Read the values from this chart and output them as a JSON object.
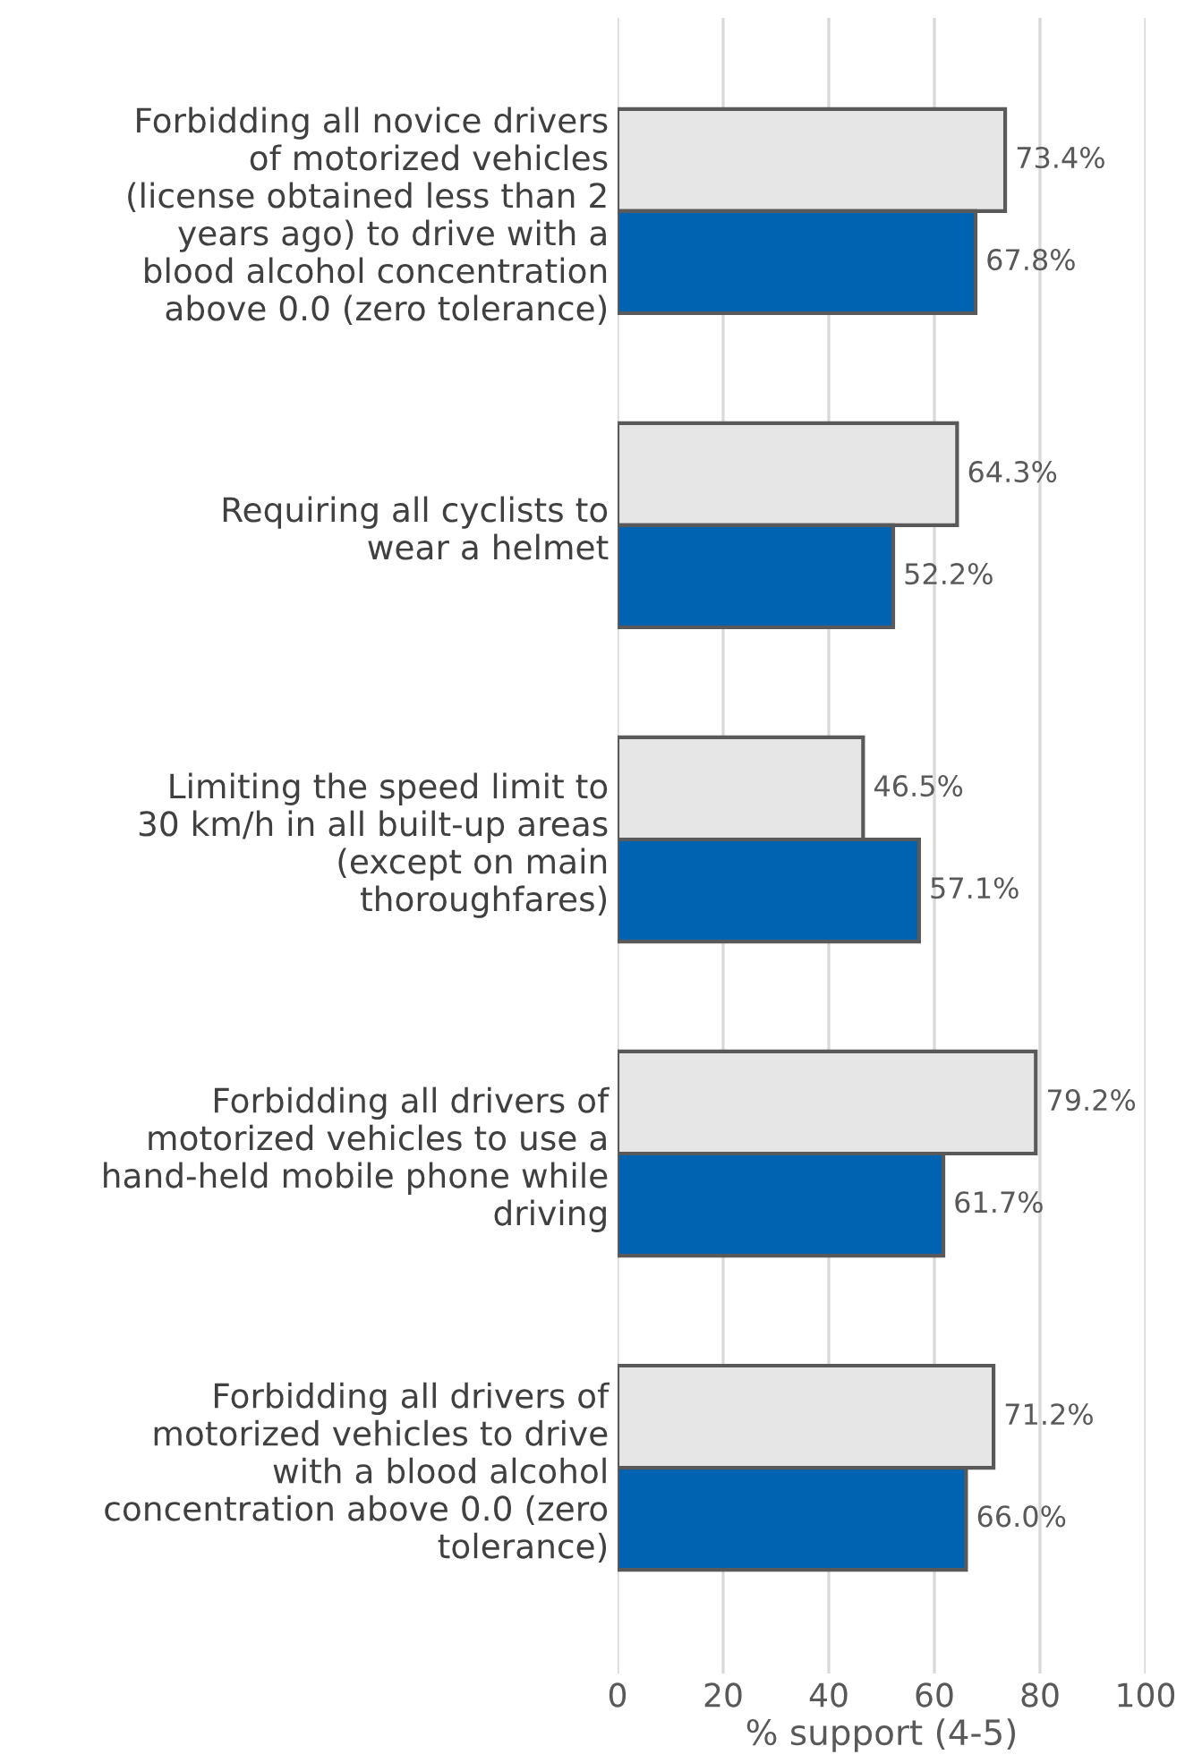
{
  "chart_data": {
    "type": "bar",
    "orientation": "horizontal",
    "xlabel": "% support (4-5)",
    "categories": [
      "Forbidding all novice drivers\nof motorized vehicles\n(license obtained less than 2\nyears ago) to drive with a\nblood alcohol concentration\nabove 0.0 (zero tolerance)",
      "Requiring all cyclists to\nwear a helmet",
      "Limiting the speed limit to\n30 km/h in all built-up areas\n(except on main\nthoroughfares)",
      "Forbidding all drivers of\nmotorized vehicles to use a\nhand-held mobile phone while\ndriving",
      "Forbidding all drivers of\nmotorized vehicles to drive\nwith a blood alcohol\nconcentration above 0.0 (zero\ntolerance)"
    ],
    "series": [
      {
        "color": "#e6e6e6",
        "values": [
          73.4,
          64.3,
          46.5,
          79.2,
          71.2
        ]
      },
      {
        "color": "#0063b1",
        "values": [
          67.8,
          52.2,
          57.1,
          61.7,
          66.0
        ]
      }
    ],
    "value_labels": [
      [
        "73.4%",
        "64.3%",
        "46.5%",
        "79.2%",
        "71.2%"
      ],
      [
        "67.8%",
        "52.2%",
        "57.1%",
        "61.7%",
        "66.0%"
      ]
    ],
    "xlim": [
      0,
      100
    ],
    "xticks": [
      0,
      20,
      40,
      60,
      80,
      100
    ],
    "grid": "x"
  }
}
